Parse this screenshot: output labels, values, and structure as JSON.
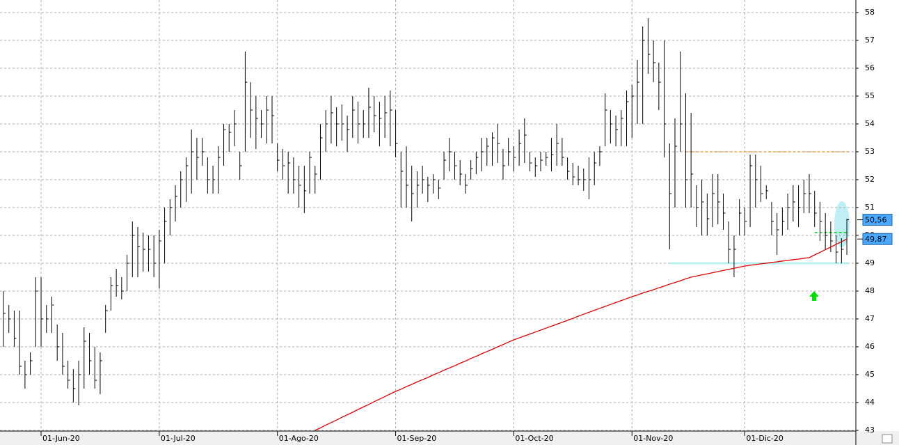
{
  "chart_data": {
    "type": "hlc",
    "categories": [
      null,
      null,
      null,
      null,
      null,
      null,
      null,
      "01-Jun-20",
      null,
      null,
      null,
      null,
      null,
      null,
      null,
      null,
      null,
      null,
      null,
      null,
      null,
      null,
      null,
      null,
      null,
      null,
      null,
      null,
      null,
      "01-Jul-20",
      null,
      null,
      null,
      null,
      null,
      null,
      null,
      null,
      null,
      null,
      null,
      null,
      null,
      null,
      null,
      null,
      null,
      null,
      null,
      null,
      null,
      "01-Ago-20",
      null,
      null,
      null,
      null,
      null,
      null,
      null,
      null,
      null,
      null,
      null,
      null,
      null,
      null,
      null,
      null,
      null,
      null,
      null,
      null,
      null,
      "01-Sep-20",
      null,
      null,
      null,
      null,
      null,
      null,
      null,
      null,
      null,
      null,
      null,
      null,
      null,
      null,
      null,
      null,
      null,
      null,
      null,
      null,
      null,
      "01-Oct-20",
      null,
      null,
      null,
      null,
      null,
      null,
      null,
      null,
      null,
      null,
      null,
      null,
      null,
      null,
      null,
      null,
      null,
      null,
      null,
      null,
      null,
      "01-Nov-20",
      null,
      null,
      null,
      null,
      null,
      null,
      null,
      null,
      null,
      null,
      null,
      null,
      null,
      null,
      null,
      null,
      null,
      null,
      null,
      null,
      "01-Dic-20",
      null,
      null,
      null,
      null,
      null,
      null,
      null,
      null,
      null,
      null,
      null,
      null,
      null,
      null,
      null,
      null,
      null,
      null,
      null
    ],
    "high": [
      48,
      47.5,
      47.3,
      47.3,
      45.5,
      45.8,
      48.5,
      48.5,
      47.5,
      47.8,
      46.8,
      46.5,
      45.5,
      45.2,
      45.5,
      46.7,
      46.5,
      46,
      45.8,
      47.5,
      48.5,
      48.8,
      48.5,
      49.3,
      50.5,
      50.3,
      50.1,
      50,
      50,
      50.2,
      51,
      51.3,
      51.8,
      52.3,
      52.8,
      53.8,
      53.5,
      53.5,
      52.8,
      52.5,
      53.2,
      54,
      54,
      54.5,
      53,
      56.6,
      55.5,
      55,
      54.5,
      55,
      55,
      53.3,
      53.1,
      53,
      52.8,
      52.5,
      52.5,
      53,
      52.5,
      54,
      54.5,
      55,
      54.6,
      54.7,
      54.3,
      55,
      54.8,
      54.5,
      55.3,
      55,
      54.8,
      55,
      55.2,
      54.5,
      53,
      53.2,
      52.5,
      52.3,
      52.5,
      52.1,
      52.2,
      52,
      53,
      53.5,
      53,
      52.7,
      52.2,
      52.7,
      53,
      53.5,
      53.5,
      53.7,
      54,
      53.1,
      53.5,
      53.2,
      53.8,
      54.2,
      53,
      52.8,
      53,
      53,
      53.5,
      54,
      53.5,
      52.8,
      52.6,
      52.5,
      52.4,
      52.8,
      53,
      53.2,
      55.1,
      54.5,
      54.3,
      54.5,
      55.2,
      55.4,
      56.3,
      57.5,
      57.8,
      57,
      56.2,
      57,
      53.3,
      54.2,
      56.6,
      55.1,
      54.4,
      51.8,
      52,
      51.5,
      52.2,
      52.2,
      51.5,
      50.5,
      50,
      51.3,
      51,
      52.9,
      52.9,
      52.5,
      51.8,
      51.2,
      50.8,
      51,
      51.5,
      51.8,
      51.8,
      52,
      52.2,
      51.6,
      51.2,
      50.8,
      50.5,
      50,
      49.9,
      50.6
    ],
    "low": [
      46,
      46.5,
      46,
      45,
      44.5,
      45,
      46,
      46,
      46.5,
      46.5,
      45.5,
      45,
      44.5,
      44,
      43.9,
      44.5,
      45,
      44.5,
      44.3,
      46.5,
      47.3,
      47.8,
      47.7,
      48,
      48.5,
      48.5,
      48.7,
      48.7,
      48.5,
      48.1,
      49,
      50,
      50.5,
      51,
      51.2,
      51.5,
      52,
      52.5,
      51.5,
      51.5,
      51.5,
      52.5,
      53,
      53.2,
      52,
      53,
      53.5,
      53.1,
      53.5,
      53.3,
      53.3,
      52.3,
      52,
      51.5,
      51.5,
      51,
      50.8,
      51.5,
      51.5,
      52,
      53,
      53.3,
      53.2,
      53.4,
      53,
      53.5,
      53.3,
      53.5,
      53.5,
      53.7,
      53.2,
      53.5,
      53.2,
      52.8,
      51,
      51,
      50.5,
      51,
      51.5,
      51.2,
      51.5,
      51.3,
      52,
      52.3,
      52,
      51.8,
      51.5,
      52,
      52.2,
      52.3,
      52.5,
      52.5,
      52.6,
      52,
      52.5,
      52.3,
      52.5,
      52.6,
      52.3,
      52.1,
      52.3,
      52.5,
      52.3,
      52.5,
      52.5,
      52,
      51.8,
      51.8,
      51.6,
      51.3,
      51.8,
      52.5,
      53.2,
      53.3,
      53.2,
      53.2,
      53.2,
      53.5,
      54,
      54,
      55.8,
      55.5,
      54.5,
      52.8,
      49.5,
      51,
      53,
      51,
      51,
      50.3,
      50,
      50,
      50.3,
      50.4,
      50.2,
      49,
      48.5,
      50,
      50,
      50.3,
      51,
      51.2,
      51.3,
      50,
      49.3,
      50,
      50.2,
      50.5,
      50.3,
      50.8,
      50.8,
      50.3,
      49.8,
      49.5,
      49.4,
      49,
      49,
      49.3
    ],
    "close": [
      47.2,
      47,
      46.3,
      45.3,
      45,
      45.5,
      48,
      47,
      47,
      47.5,
      46,
      45.3,
      44.8,
      44.5,
      45,
      46.2,
      45.5,
      44.8,
      45.5,
      47.3,
      48.2,
      48.2,
      48,
      49,
      50,
      49.6,
      49.5,
      49.5,
      49,
      49.8,
      50.5,
      51,
      51.4,
      52,
      52.5,
      53,
      52.8,
      53,
      52,
      52,
      52.8,
      53.8,
      53.7,
      54,
      52.5,
      55.5,
      54.5,
      54.2,
      54,
      54.5,
      54.3,
      52.7,
      52.5,
      52.6,
      52,
      51.8,
      51.6,
      52.8,
      52.2,
      53.5,
      54,
      54.4,
      54,
      54,
      53.8,
      54.5,
      54,
      54,
      54.6,
      54.3,
      54.2,
      54.4,
      54.5,
      53.3,
      52.3,
      51.8,
      51.5,
      51.8,
      52,
      51.8,
      52,
      51.7,
      52.7,
      53,
      52.5,
      52.2,
      51.8,
      52.4,
      52.8,
      53,
      53.2,
      53.5,
      53.3,
      52.5,
      53,
      52.8,
      53.3,
      53.6,
      52.6,
      52.5,
      52.7,
      52.8,
      52.9,
      53.3,
      52.8,
      52.3,
      52.1,
      52,
      52,
      52,
      52.6,
      53,
      54.5,
      54,
      53.8,
      54.2,
      54.8,
      55,
      55.5,
      57,
      56.5,
      56.2,
      55.5,
      54,
      51.5,
      53.2,
      54,
      52,
      52.2,
      51,
      51.2,
      50.6,
      51.5,
      51.2,
      50.8,
      49.5,
      49.5,
      50.8,
      50.5,
      52.5,
      52,
      51.5,
      51.6,
      50.5,
      50.2,
      50.5,
      51,
      51.2,
      51,
      51.5,
      51.5,
      50.8,
      50.5,
      50,
      49.8,
      49.4,
      49.5,
      50.56
    ],
    "ma": [
      null,
      null,
      null,
      null,
      null,
      null,
      null,
      null,
      null,
      null,
      null,
      null,
      null,
      null,
      null,
      null,
      null,
      null,
      null,
      null,
      null,
      null,
      null,
      null,
      null,
      null,
      null,
      null,
      null,
      null,
      null,
      null,
      null,
      null,
      null,
      null,
      null,
      null,
      null,
      null,
      null,
      null,
      null,
      null,
      null,
      null,
      null,
      null,
      null,
      null,
      null,
      null,
      null,
      null,
      null,
      null,
      null,
      null,
      43.0,
      43.09,
      43.19,
      43.28,
      43.37,
      43.47,
      43.56,
      43.65,
      43.75,
      43.84,
      43.93,
      44.03,
      44.12,
      44.21,
      44.31,
      44.4,
      44.48,
      44.57,
      44.65,
      44.74,
      44.82,
      44.9,
      44.99,
      45.07,
      45.16,
      45.24,
      45.32,
      45.41,
      45.49,
      45.58,
      45.66,
      45.75,
      45.83,
      45.91,
      46.0,
      46.08,
      46.17,
      46.25,
      46.32,
      46.39,
      46.46,
      46.53,
      46.6,
      46.67,
      46.74,
      46.81,
      46.88,
      46.95,
      47.02,
      47.1,
      47.17,
      47.24,
      47.31,
      47.38,
      47.45,
      47.52,
      47.59,
      47.66,
      47.73,
      47.8,
      47.86,
      47.93,
      47.99,
      48.05,
      48.12,
      48.18,
      48.25,
      48.31,
      48.37,
      48.44,
      48.5,
      48.54,
      48.58,
      48.62,
      48.66,
      48.7,
      48.74,
      48.78,
      48.82,
      48.86,
      48.9,
      48.93,
      48.95,
      48.98,
      49.0,
      49.03,
      49.05,
      49.08,
      49.1,
      49.13,
      49.15,
      49.18,
      49.2,
      49.3,
      49.39,
      49.49,
      49.58,
      49.68,
      49.77,
      49.87
    ],
    "bar_color": "#000000",
    "ma_color": "#dd0000",
    "ylim": [
      43,
      58.5
    ],
    "yticks": [
      43,
      44,
      45,
      46,
      47,
      48,
      49,
      50,
      51,
      52,
      53,
      54,
      55,
      56,
      57,
      58
    ],
    "grid": true,
    "levels": [
      {
        "value": 53,
        "color": "#f5a04a"
      },
      {
        "value": 50.1,
        "color": "#00cc00"
      },
      {
        "value": 49,
        "color": "#b8f0f0"
      }
    ],
    "price_labels": [
      {
        "label": "50,56",
        "value": 50.56
      },
      {
        "label": "49,87",
        "value": 49.87
      }
    ]
  }
}
